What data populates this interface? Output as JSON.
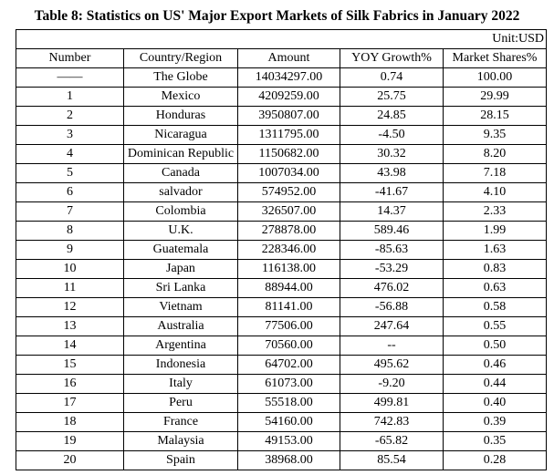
{
  "title": "Table 8: Statistics on US' Major Export Markets of Silk Fabrics in January 2022",
  "unit": "Unit:USD",
  "table": {
    "header": [
      "Number",
      "Country/Region",
      "Amount",
      "YOY Growth%",
      "Market Shares%"
    ],
    "rows": [
      [
        "——",
        "The Globe",
        "14034297.00",
        "0.74",
        "100.00"
      ],
      [
        "1",
        "Mexico",
        "4209259.00",
        "25.75",
        "29.99"
      ],
      [
        "2",
        "Honduras",
        "3950807.00",
        "24.85",
        "28.15"
      ],
      [
        "3",
        "Nicaragua",
        "1311795.00",
        "-4.50",
        "9.35"
      ],
      [
        "4",
        "Dominican Republic",
        "1150682.00",
        "30.32",
        "8.20"
      ],
      [
        "5",
        "Canada",
        "1007034.00",
        "43.98",
        "7.18"
      ],
      [
        "6",
        "salvador",
        "574952.00",
        "-41.67",
        "4.10"
      ],
      [
        "7",
        "Colombia",
        "326507.00",
        "14.37",
        "2.33"
      ],
      [
        "8",
        "U.K.",
        "278878.00",
        "589.46",
        "1.99"
      ],
      [
        "9",
        "Guatemala",
        "228346.00",
        "-85.63",
        "1.63"
      ],
      [
        "10",
        "Japan",
        "116138.00",
        "-53.29",
        "0.83"
      ],
      [
        "11",
        "Sri Lanka",
        "88944.00",
        "476.02",
        "0.63"
      ],
      [
        "12",
        "Vietnam",
        "81141.00",
        "-56.88",
        "0.58"
      ],
      [
        "13",
        "Australia",
        "77506.00",
        "247.64",
        "0.55"
      ],
      [
        "14",
        "Argentina",
        "70560.00",
        "--",
        "0.50"
      ],
      [
        "15",
        "Indonesia",
        "64702.00",
        "495.62",
        "0.46"
      ],
      [
        "16",
        "Italy",
        "61073.00",
        "-9.20",
        "0.44"
      ],
      [
        "17",
        "Peru",
        "55518.00",
        "499.81",
        "0.40"
      ],
      [
        "18",
        "France",
        "54160.00",
        "742.83",
        "0.39"
      ],
      [
        "19",
        "Malaysia",
        "49153.00",
        "-65.82",
        "0.35"
      ],
      [
        "20",
        "Spain",
        "38968.00",
        "85.54",
        "0.28"
      ]
    ]
  }
}
